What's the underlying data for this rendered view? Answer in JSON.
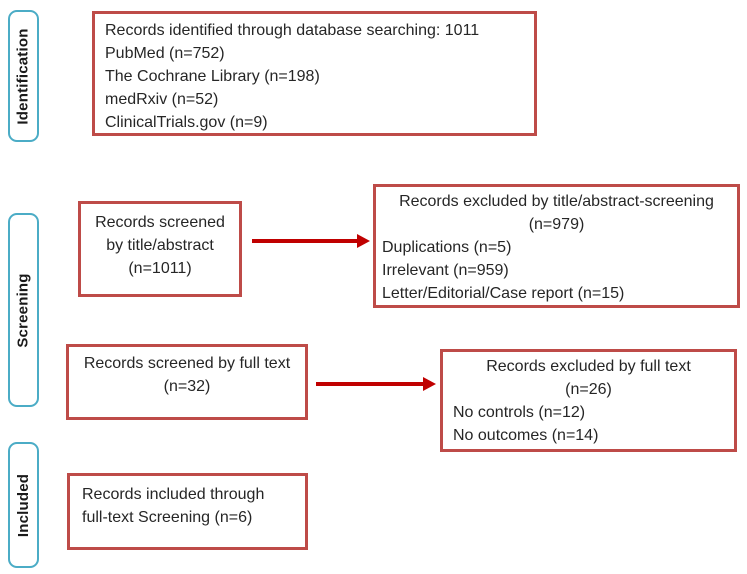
{
  "diagram_title": "PRISMA-style study selection flow diagram",
  "colors": {
    "box_border": "#be4b48",
    "arrow": "#c00000",
    "stage_border": "#4bacc6",
    "text": "#262626",
    "background": "#ffffff"
  },
  "stages": {
    "identification": "Identification",
    "screening": "Screening",
    "included": "Included"
  },
  "boxes": {
    "identified": {
      "line1": "Records identified through database searching: 1011",
      "line2": "PubMed (n=752)",
      "line3": "The Cochrane Library (n=198)",
      "line4": "medRxiv (n=52)",
      "line5": "ClinicalTrials.gov (n=9)"
    },
    "screened_title_abstract": {
      "line1": "Records screened",
      "line2": "by title/abstract",
      "line3": "(n=1011)"
    },
    "excluded_title_abstract": {
      "line1": "Records excluded by title/abstract-screening",
      "line2": "(n=979)",
      "line3": "Duplications (n=5)",
      "line4": "Irrelevant (n=959)",
      "line5": "Letter/Editorial/Case report (n=15)"
    },
    "screened_full_text": {
      "line1": "Records screened by full text",
      "line2": "(n=32)"
    },
    "excluded_full_text": {
      "line1": "Records excluded by full text",
      "line2": "(n=26)",
      "line3": "No controls (n=12)",
      "line4": "No outcomes (n=14)"
    },
    "included_full_text": {
      "line1": "Records included through",
      "line2": "full-text Screening (n=6)"
    }
  }
}
